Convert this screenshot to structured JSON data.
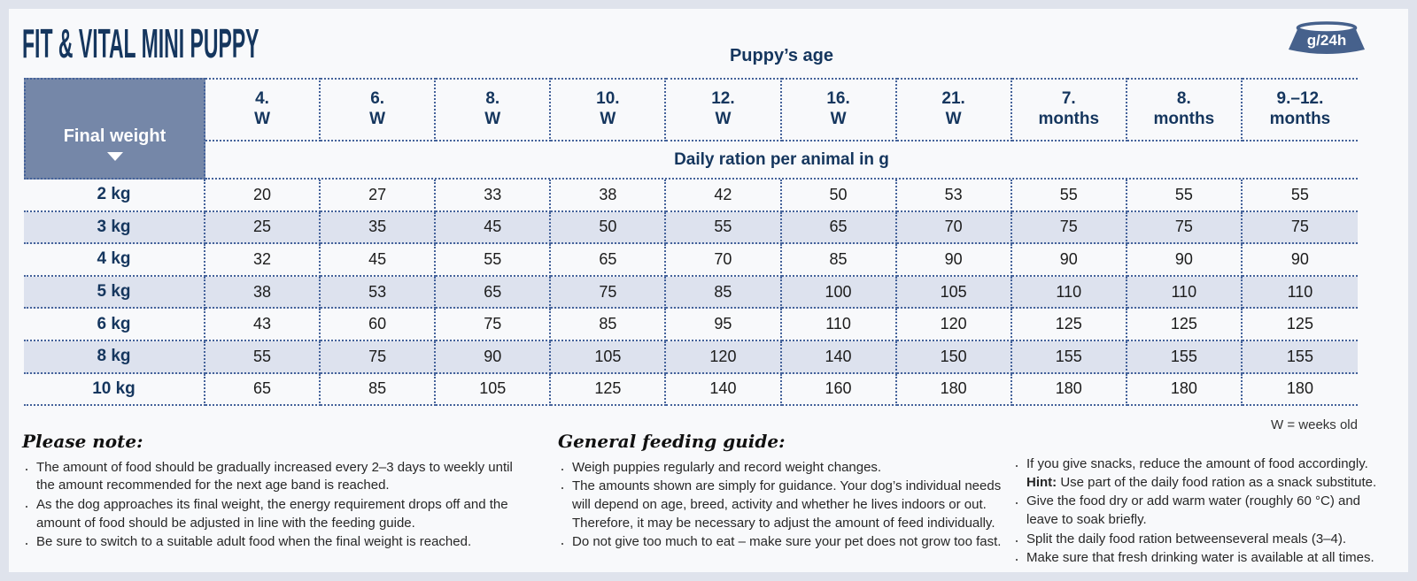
{
  "title": "FIT & VITAL MINI PUPPY",
  "badge": {
    "label": "g/24h"
  },
  "table": {
    "age_header": "Puppy’s age",
    "corner_label": "Final weight",
    "subheader": "Daily ration per animal in g",
    "columns": [
      {
        "line1": "4.",
        "line2": "W"
      },
      {
        "line1": "6.",
        "line2": "W"
      },
      {
        "line1": "8.",
        "line2": "W"
      },
      {
        "line1": "10.",
        "line2": "W"
      },
      {
        "line1": "12.",
        "line2": "W"
      },
      {
        "line1": "16.",
        "line2": "W"
      },
      {
        "line1": "21.",
        "line2": "W"
      },
      {
        "line1": "7.",
        "line2": "months"
      },
      {
        "line1": "8.",
        "line2": "months"
      },
      {
        "line1": "9.–12.",
        "line2": "months"
      }
    ],
    "rows": [
      {
        "weight": "2 kg",
        "values": [
          20,
          27,
          33,
          38,
          42,
          50,
          53,
          55,
          55,
          55
        ]
      },
      {
        "weight": "3 kg",
        "values": [
          25,
          35,
          45,
          50,
          55,
          65,
          70,
          75,
          75,
          75
        ]
      },
      {
        "weight": "4 kg",
        "values": [
          32,
          45,
          55,
          65,
          70,
          85,
          90,
          90,
          90,
          90
        ]
      },
      {
        "weight": "5 kg",
        "values": [
          38,
          53,
          65,
          75,
          85,
          100,
          105,
          110,
          110,
          110
        ]
      },
      {
        "weight": "6 kg",
        "values": [
          43,
          60,
          75,
          85,
          95,
          110,
          120,
          125,
          125,
          125
        ]
      },
      {
        "weight": "8 kg",
        "values": [
          55,
          75,
          90,
          105,
          120,
          140,
          150,
          155,
          155,
          155
        ]
      },
      {
        "weight": "10 kg",
        "values": [
          65,
          85,
          105,
          125,
          140,
          160,
          180,
          180,
          180,
          180
        ]
      }
    ]
  },
  "footnote": "W = weeks old",
  "notes_col1": {
    "heading": "Please note:",
    "bullets": [
      "The amount of food should be gradually increased every 2–3 days to weekly until the amount recommended for the next age band is reached.",
      "As the dog approaches its final weight, the energy requirement drops off and the amount of food should be adjusted in line with the feeding guide.",
      "Be sure to switch to a suitable adult food when the final weight is reached."
    ]
  },
  "notes_col2": {
    "heading": "General feeding guide:",
    "bullets": [
      "Weigh puppies regularly and record weight changes.",
      "The amounts shown are simply for guidance. Your dog’s individual needs will depend on age, breed, activity and whether he lives indoors or out. Therefore, it may be necessary to adjust the amount of feed individually.",
      "Do not give too much to eat – make sure your pet does not grow too fast."
    ]
  },
  "notes_col3": {
    "bullet1_text": "If you give snacks, reduce the amount of food accordingly.",
    "hint_label": "Hint:",
    "hint_text": "Use part of the daily food ration as a snack substitute.",
    "bullets_rest": [
      "Give the food dry or add warm water (roughly 60 °C) and leave to soak briefly.",
      "Split the daily food ration betweenseveral meals (3–4).",
      "Make sure that fresh drinking water is available at all times."
    ]
  },
  "colors": {
    "navy": "#15365e",
    "line": "#44629a",
    "corner": "#7587a8",
    "bowl": "#46618c",
    "stripe": "#dde2ee",
    "card": "#f8f9fb",
    "outer": "#dfe3ec",
    "ink": "#272727"
  }
}
